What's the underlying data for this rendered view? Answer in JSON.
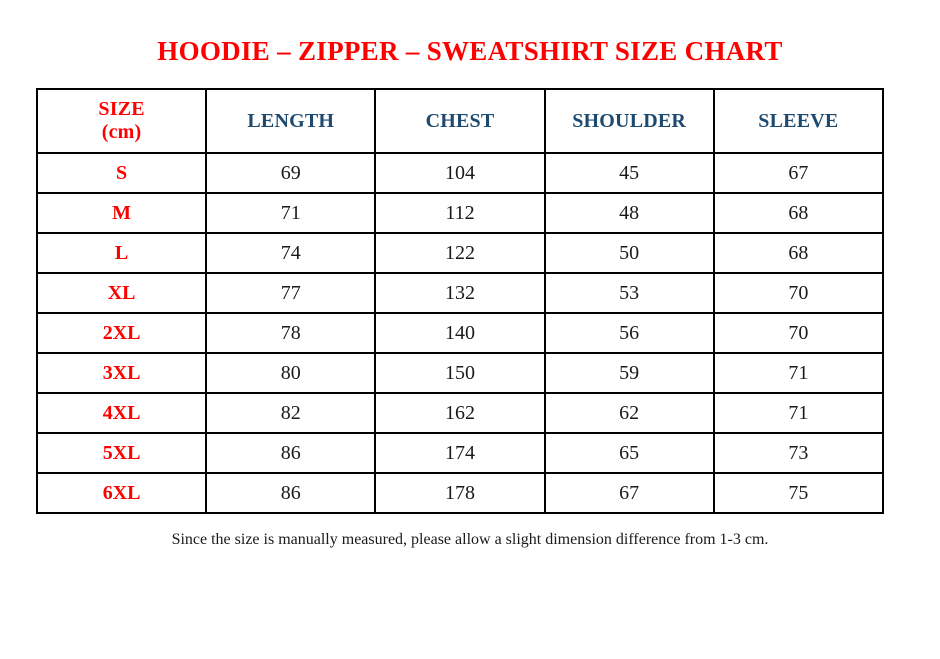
{
  "stray_mark": ".",
  "title": "HOODIE – ZIPPER – SWEATSHIRT SIZE CHART",
  "colors": {
    "title_red": "#FF0000",
    "header_blue": "#1F4A70",
    "body_text": "#1A1A1A",
    "border": "#000000",
    "background": "#FFFFFF"
  },
  "table": {
    "size_header": "SIZE\n(cm)",
    "columns": [
      "LENGTH",
      "CHEST",
      "SHOULDER",
      "SLEEVE"
    ],
    "rows": [
      {
        "size": "S",
        "length": "69",
        "chest": "104",
        "shoulder": "45",
        "sleeve": "67"
      },
      {
        "size": "M",
        "length": "71",
        "chest": "112",
        "shoulder": "48",
        "sleeve": "68"
      },
      {
        "size": "L",
        "length": "74",
        "chest": "122",
        "shoulder": "50",
        "sleeve": "68"
      },
      {
        "size": "XL",
        "length": "77",
        "chest": "132",
        "shoulder": "53",
        "sleeve": "70"
      },
      {
        "size": "2XL",
        "length": "78",
        "chest": "140",
        "shoulder": "56",
        "sleeve": "70"
      },
      {
        "size": "3XL",
        "length": "80",
        "chest": "150",
        "shoulder": "59",
        "sleeve": "71"
      },
      {
        "size": "4XL",
        "length": "82",
        "chest": "162",
        "shoulder": "62",
        "sleeve": "71"
      },
      {
        "size": "5XL",
        "length": "86",
        "chest": "174",
        "shoulder": "65",
        "sleeve": "73"
      },
      {
        "size": "6XL",
        "length": "86",
        "chest": "178",
        "shoulder": "67",
        "sleeve": "75"
      }
    ]
  },
  "footer_note": "Since the size is manually measured, please allow a slight dimension difference from 1-3 cm."
}
